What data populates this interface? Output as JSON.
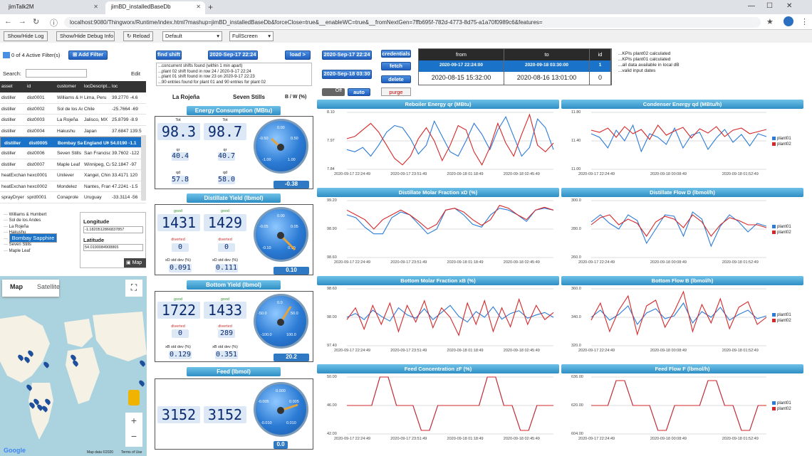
{
  "browser": {
    "tabs": [
      {
        "label": "jimTalk2M"
      },
      {
        "label": "jimBD_installedBaseDb"
      }
    ],
    "url": "localhost:9080/Thingworx/Runtime/index.html?mashup=jimBD_installedBaseDb&forceClose=true&__enableWC=true&__fromNextGen=7ffb695f-782d-4773-8d75-a1a70f0989c6&features="
  },
  "toolbar": {
    "show_hide_log": "Show/Hide Log",
    "show_hide_debug": "Show/Hide Debug Info",
    "reload": "Reload",
    "default_select": "Default",
    "fullscreen_select": "FullScreen"
  },
  "filters": {
    "count_label": "0 of 4 Active Filter(s)",
    "add_filter": "Add Filter",
    "search_label": "Search:",
    "edit_label": "Edit"
  },
  "asset_table": {
    "columns": [
      "asset",
      "id",
      "customer",
      "locDescript...",
      "loc"
    ],
    "rows": [
      [
        "distiller",
        "dist0001",
        "Williams & Hu",
        "Lima, Peru",
        "39.2770 -4.6"
      ],
      [
        "distiller",
        "dist0002",
        "Sol de los And",
        "Chile",
        "-25.7664 -69"
      ],
      [
        "distiller",
        "dist0003",
        "La Rojeña",
        "Jalisco, MX",
        "25.8799 -8.9"
      ],
      [
        "distiller",
        "dist0004",
        "Hakushu",
        "Japan",
        "37.6847 139.5"
      ],
      [
        "distiller",
        "dist0005",
        "Bombay Sapp",
        "England UK",
        "54.0190 -1.1"
      ],
      [
        "distiller",
        "dist0006",
        "Seven Stills",
        "San Francisco",
        "39.7602 -122"
      ],
      [
        "distiller",
        "dist0007",
        "Maple Leaf",
        "Winnipeg, Cana",
        "52.1847 -97"
      ],
      [
        "heatExchang",
        "hexc0001",
        "Unilever",
        "Xangel, China",
        "33.4171 120"
      ],
      [
        "heatExchang",
        "hexc0002",
        "Mondelez",
        "Nantes, France",
        "47.2241 -1.5"
      ],
      [
        "sprayDryer",
        "sprd0001",
        "Conaprole",
        "Uruguay",
        "-33.3114 -56"
      ]
    ],
    "selected_index": 4
  },
  "tree": {
    "items": [
      "Williams & Humbert",
      "Sol de los Andes",
      "La Rojeña",
      "Hakushu",
      "Bombay Sapphire",
      "Seven Stills",
      "Maple Leaf"
    ],
    "selected_index": 4
  },
  "coords": {
    "longitude_label": "Longitude",
    "longitude_value": "-1.1820512866837857",
    "latitude_label": "Latitude",
    "latitude_value": "54.0190084908865",
    "map_button": "Map"
  },
  "map": {
    "tab_map": "Map",
    "tab_satellite": "Satellite",
    "credit": "Map data ©2020",
    "terms": "Terms of Use",
    "google": "Google"
  },
  "shift": {
    "find_shift": "find shift",
    "date1": "2020-Sep-17 22:24",
    "load": "load >",
    "log": [
      "...concurrent shifts found (within 1 min apart)",
      "...plant 02 shift found in row 24 / 2020-9-17 22:24",
      "...plant 01 shift found in row 23 on 2020-9-17 22:23",
      "...90 entries found for plant 01 and 90 entries for plant 02"
    ]
  },
  "plants": {
    "a": "La Rojeña",
    "b": "Seven Stills",
    "ratio": "B / W (%)"
  },
  "energy": {
    "title": "Energy Consumption (MBtu)",
    "tot_label": "Tot",
    "tot_a": "98.3",
    "tot_b": "98.7",
    "qr_label": "qr",
    "qr_a": "40.4",
    "qr_b": "40.7",
    "qd_label": "qd",
    "qd_a": "57.8",
    "qd_b": "58.0",
    "gauge_ticks": [
      "0.00",
      "-0.50",
      "0.50",
      "-1.00",
      "1.00"
    ],
    "gauge_value": "-0.38"
  },
  "distillate": {
    "title": "Distillate Yield (lbmol)",
    "good_label": "good",
    "good_a": "1431",
    "good_b": "1429",
    "diverted_label": "diverted",
    "div_a": "0",
    "div_b": "0",
    "std_label": "xD std dev (%)",
    "std_a": "0.091",
    "std_b": "0.111",
    "gauge_ticks": [
      "0.00",
      "-0.05",
      "0.05",
      "-0.10",
      "0.10"
    ],
    "gauge_value": "0.10"
  },
  "bottom": {
    "title": "Bottom Yield (lbmol)",
    "good_label": "good",
    "good_a": "1722",
    "good_b": "1433",
    "diverted_label": "diverted",
    "div_a": "0",
    "div_b": "289",
    "std_label": "xB std dev (%)",
    "std_a": "0.129",
    "std_b": "0.351",
    "gauge_ticks": [
      "0.0",
      "-50.0",
      "50.0",
      "-100.0",
      "100.0"
    ],
    "gauge_value": "20.2"
  },
  "feed": {
    "title": "Feed (lbmol)",
    "a": "3152",
    "b": "3152",
    "gauge_ticks": [
      "0.000",
      "-0.005",
      "0.005",
      "-0.010",
      "0.010"
    ],
    "gauge_value": "0.0"
  },
  "controls": {
    "date1": "2020-Sep-17 22:24",
    "date2": "2020-Sep-18 03:30",
    "credentials": "credentials",
    "fetch": "fetch",
    "delete": "delete",
    "purge": "purge",
    "toggle": "Off",
    "auto": "auto"
  },
  "shift_table": {
    "headers": [
      "from",
      "to",
      "id"
    ],
    "row1": [
      "2020-09-17 22:24:00",
      "2020-09-18 03:30:00",
      "1"
    ],
    "row2": [
      "2020-08-15 15:32:00",
      "2020-08-16 13:01:00",
      "0"
    ]
  },
  "status_log": [
    "...KPIs plant02 calculated",
    "...KPIs plant01 calculated",
    "...all data available in local dB",
    "...valid input dates"
  ],
  "colors": {
    "plant01": "#2b7bd8",
    "plant02": "#d62728",
    "accent": "#2f8fc4"
  },
  "chart_data": [
    {
      "type": "line",
      "title": "Reboiler Energy qr (MBtu)",
      "ytick_labels": [
        "8.10",
        "7.97",
        "7.84"
      ],
      "ylim": [
        7.84,
        8.1
      ],
      "xtick_labels": [
        "2020-09-17 22:24:49",
        "2020-09-17 23:51:49",
        "2020-09-18 01:18:49",
        "2020-09-18 02:45:49"
      ],
      "series": [
        {
          "name": "",
          "values": [
            7.93,
            7.92,
            7.94,
            7.9,
            7.95,
            8.01,
            8.04,
            8.03,
            7.98,
            7.91,
            7.95,
            8.06,
            7.99,
            7.92,
            7.9,
            7.97,
            8.05,
            8.0,
            7.93,
            8.02,
            8.08,
            7.99,
            7.9,
            7.94,
            8.07,
            8.03,
            7.93
          ]
        },
        {
          "name": "",
          "values": [
            7.98,
            7.99,
            8.02,
            8.05,
            8.01,
            7.95,
            7.89,
            7.86,
            7.9,
            7.98,
            8.03,
            7.97,
            7.88,
            7.95,
            8.04,
            8.02,
            7.92,
            7.86,
            7.94,
            8.05,
            7.96,
            7.9,
            8.0,
            8.09,
            7.95,
            7.92,
            7.96
          ]
        }
      ]
    },
    {
      "type": "line",
      "title": "Condenser Energy qd (MBtu/h)",
      "ytick_labels": [
        "11.80",
        "11.40",
        "11.00"
      ],
      "ylim": [
        11.0,
        11.8
      ],
      "xtick_labels": [
        "2020-09-17 22:24:49",
        "2020-09-18 00:08:49",
        "2020-09-18 01:52:49"
      ],
      "series": [
        {
          "name": "plant01",
          "values": [
            11.5,
            11.45,
            11.3,
            11.55,
            11.4,
            11.62,
            11.25,
            11.5,
            11.45,
            11.35,
            11.58,
            11.3,
            11.48,
            11.52,
            11.28,
            11.44,
            11.56,
            11.38,
            11.49,
            11.33,
            11.5,
            11.46
          ]
        },
        {
          "name": "plant02",
          "values": [
            11.55,
            11.52,
            11.58,
            11.45,
            11.6,
            11.5,
            11.56,
            11.42,
            11.62,
            11.48,
            11.54,
            11.59,
            11.44,
            11.57,
            11.51,
            11.6,
            11.46,
            11.55,
            11.58,
            11.5,
            11.53,
            11.56
          ]
        }
      ]
    },
    {
      "type": "line",
      "title": "Distillate Molar Fraction xD (%)",
      "ytick_labels": [
        "99.20",
        "98.90",
        "98.60"
      ],
      "ylim": [
        98.6,
        99.2
      ],
      "xtick_labels": [
        "2020-09-17 22:24:49",
        "2020-09-17 23:51:49",
        "2020-09-18 01:18:49",
        "2020-09-18 02:45:49"
      ],
      "series": [
        {
          "name": "",
          "values": [
            99.05,
            99.02,
            98.92,
            98.85,
            98.85,
            99.02,
            99.08,
            99.05,
            98.95,
            98.85,
            98.9,
            99.1,
            99.12,
            99.05,
            98.95,
            98.92,
            99.05,
            99.12,
            99.1,
            99.05,
            98.98,
            99.1,
            99.12,
            99.1
          ]
        },
        {
          "name": "",
          "values": [
            99.1,
            99.05,
            99.0,
            98.9,
            99.0,
            99.05,
            99.1,
            99.05,
            98.98,
            98.9,
            98.95,
            99.1,
            99.12,
            99.08,
            99.0,
            98.94,
            99.0,
            99.15,
            99.12,
            99.05,
            99.0,
            99.1,
            99.13,
            99.1
          ]
        }
      ]
    },
    {
      "type": "line",
      "title": "Distillate Flow D (lbmol/h)",
      "ytick_labels": [
        "300.0",
        "280.0",
        "260.0"
      ],
      "ylim": [
        260,
        300
      ],
      "xtick_labels": [
        "2020-09-17 22:24:49",
        "2020-09-18 00:08:49",
        "2020-09-18 01:52:49"
      ],
      "series": [
        {
          "name": "plant01",
          "values": [
            285,
            290,
            284,
            280,
            290,
            286,
            270,
            280,
            290,
            289,
            275,
            292,
            287,
            268,
            282,
            290,
            285,
            278,
            284,
            282
          ]
        },
        {
          "name": "plant02",
          "values": [
            283,
            288,
            290,
            283,
            287,
            284,
            275,
            285,
            289,
            287,
            281,
            290,
            285,
            275,
            283,
            288,
            286,
            283,
            283,
            281
          ]
        }
      ]
    },
    {
      "type": "line",
      "title": "Bottom Molar Fraction xB (%)",
      "ytick_labels": [
        "98.60",
        "98.00",
        "97.40"
      ],
      "ylim": [
        97.4,
        98.6
      ],
      "xtick_labels": [
        "2020-09-17 22:24:49",
        "2020-09-17 23:51:49",
        "2020-09-18 01:18:49",
        "2020-09-18 02:45:49"
      ],
      "series": [
        {
          "name": "",
          "values": [
            98.0,
            98.08,
            97.95,
            98.15,
            98.02,
            97.92,
            98.2,
            98.05,
            97.98,
            98.18,
            97.95,
            98.1,
            98.25,
            98.02,
            97.9,
            98.12,
            98.0,
            98.22,
            97.96,
            98.08,
            98.14,
            97.98,
            98.05,
            98.1,
            98.0
          ]
        },
        {
          "name": "",
          "values": [
            97.95,
            98.2,
            97.75,
            98.25,
            97.85,
            98.3,
            97.7,
            98.25,
            97.9,
            98.35,
            97.78,
            98.2,
            98.0,
            97.62,
            98.3,
            97.85,
            98.35,
            97.7,
            98.2,
            97.8,
            98.38,
            97.85,
            98.25,
            97.95,
            98.1
          ]
        }
      ]
    },
    {
      "type": "line",
      "title": "Bottom Flow B (lbmol/h)",
      "ytick_labels": [
        "360.0",
        "340.0",
        "320.0"
      ],
      "ylim": [
        320,
        360
      ],
      "xtick_labels": [
        "2020-09-17 22:24:49",
        "2020-09-18 00:08:49",
        "2020-09-18 01:52:49"
      ],
      "series": [
        {
          "name": "plant01",
          "values": [
            340,
            345,
            338,
            342,
            348,
            335,
            343,
            346,
            339,
            341,
            350,
            336,
            344,
            340,
            347,
            338,
            342,
            345,
            339,
            341
          ]
        },
        {
          "name": "plant02",
          "values": [
            338,
            350,
            330,
            345,
            355,
            328,
            348,
            352,
            333,
            344,
            358,
            330,
            349,
            336,
            353,
            332,
            347,
            351,
            335,
            340
          ]
        }
      ]
    },
    {
      "type": "line",
      "title": "Feed Concentration zF (%)",
      "ytick_labels": [
        "50.00",
        "46.00",
        "42.00"
      ],
      "ylim": [
        42,
        50
      ],
      "xtick_labels": [
        "2020-09-17 22:24:49",
        "2020-09-17 23:51:49",
        "2020-09-18 01:18:49",
        "2020-09-18 02:45:49"
      ],
      "series": [
        {
          "name": "",
          "values": [
            46,
            46,
            46,
            46,
            50,
            50,
            46,
            46,
            46,
            42.5,
            42.5,
            46,
            46,
            46,
            46,
            46,
            46,
            50,
            50,
            46,
            46,
            42.5,
            42.5,
            46,
            46,
            46
          ]
        },
        {
          "name": "",
          "values": [
            46,
            46,
            46,
            46,
            50,
            50,
            46,
            46,
            46,
            42.5,
            42.5,
            46,
            46,
            46,
            46,
            46,
            46,
            50,
            50,
            46,
            46,
            42.5,
            42.5,
            46,
            46,
            46
          ]
        }
      ]
    },
    {
      "type": "line",
      "title": "Feed Flow F (lbmol/h)",
      "ytick_labels": [
        "636.00",
        "620.00",
        "604.00"
      ],
      "ylim": [
        604,
        636
      ],
      "xtick_labels": [
        "2020-09-17 22:24:49",
        "2020-09-18 00:08:49",
        "2020-09-18 01:52:49"
      ],
      "series": [
        {
          "name": "plant01",
          "values": [
            620,
            620,
            620,
            634,
            634,
            620,
            620,
            620,
            606,
            606,
            620,
            620,
            620,
            620,
            634,
            634,
            620,
            620,
            606,
            606,
            620,
            620
          ]
        },
        {
          "name": "plant02",
          "values": [
            620,
            620,
            620,
            634,
            634,
            620,
            620,
            620,
            606,
            606,
            620,
            620,
            620,
            620,
            634,
            634,
            620,
            620,
            606,
            606,
            620,
            620
          ]
        }
      ]
    }
  ]
}
